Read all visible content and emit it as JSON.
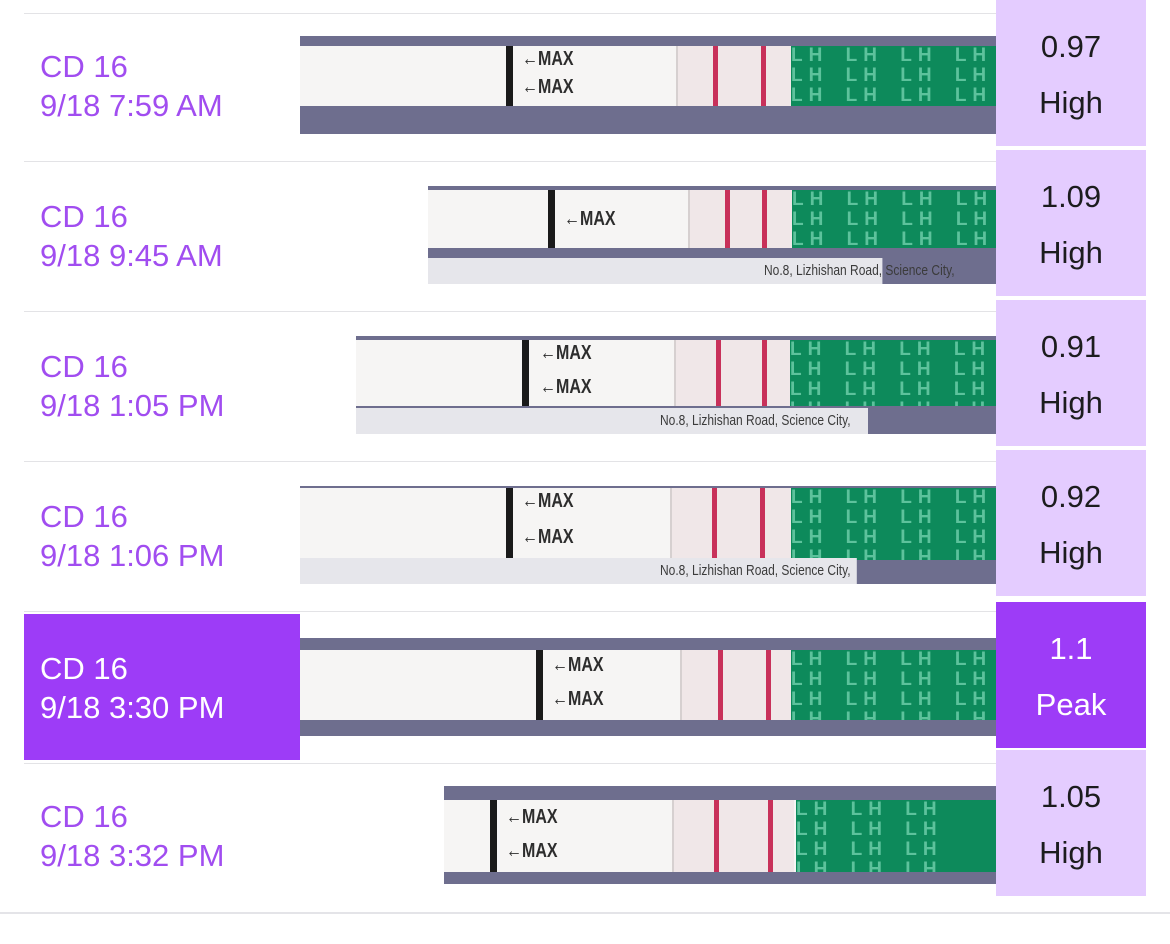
{
  "entries": [
    {
      "cycle_day": "CD 16",
      "datetime": "9/18 7:59 AM",
      "value": "0.97",
      "level": "High",
      "selected": false
    },
    {
      "cycle_day": "CD 16",
      "datetime": "9/18 9:45 AM",
      "value": "1.09",
      "level": "High",
      "selected": false
    },
    {
      "cycle_day": "CD 16",
      "datetime": "9/18 1:05 PM",
      "value": "0.91",
      "level": "High",
      "selected": false
    },
    {
      "cycle_day": "CD 16",
      "datetime": "9/18 1:06 PM",
      "value": "0.92",
      "level": "High",
      "selected": false
    },
    {
      "cycle_day": "CD 16",
      "datetime": "9/18 3:30 PM",
      "value": "1.1",
      "level": "Peak",
      "selected": true
    },
    {
      "cycle_day": "CD 16",
      "datetime": "9/18 3:32 PM",
      "value": "1.05",
      "level": "High",
      "selected": false
    }
  ],
  "strip": {
    "max_mark": "←MAX",
    "lh_text": "LH",
    "caption": "No.8, Lizhishan Road, Science City,"
  },
  "colors": {
    "accent": "#9d3cf7",
    "label_text": "#a14df0",
    "result_bg": "#e4ccff",
    "test_line": "#c8315a",
    "strip_green": "#0d8a5b"
  }
}
